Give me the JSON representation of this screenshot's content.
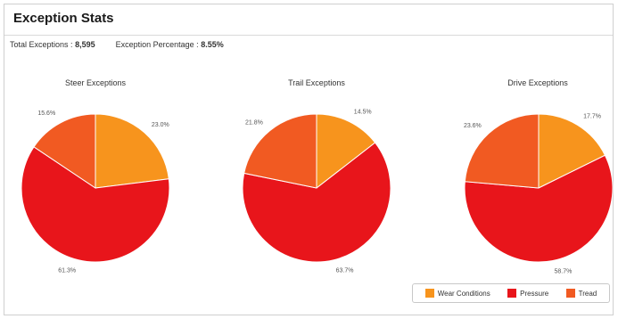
{
  "header": {
    "title": "Exception Stats"
  },
  "summary": {
    "total_label": "Total Exceptions :",
    "total_value": "8,595",
    "pct_label": "Exception Percentage :",
    "pct_value": "8.55%"
  },
  "colors": {
    "wear": "#f7941d",
    "pressure": "#e8151b",
    "tread": "#f15a22",
    "stroke": "#ffffff"
  },
  "chart_data": [
    {
      "type": "pie",
      "title": "Steer Exceptions",
      "series": [
        {
          "name": "Wear Conditions",
          "value": 23.0,
          "label": "23.0%"
        },
        {
          "name": "Pressure",
          "value": 61.3,
          "label": "61.3%"
        },
        {
          "name": "Tread",
          "value": 15.6,
          "label": "15.6%"
        }
      ]
    },
    {
      "type": "pie",
      "title": "Trail Exceptions",
      "series": [
        {
          "name": "Wear Conditions",
          "value": 14.5,
          "label": "14.5%"
        },
        {
          "name": "Pressure",
          "value": 63.7,
          "label": "63.7%"
        },
        {
          "name": "Tread",
          "value": 21.8,
          "label": "21.8%"
        }
      ]
    },
    {
      "type": "pie",
      "title": "Drive Exceptions",
      "series": [
        {
          "name": "Wear Conditions",
          "value": 17.7,
          "label": "17.7%"
        },
        {
          "name": "Pressure",
          "value": 58.7,
          "label": "58.7%"
        },
        {
          "name": "Tread",
          "value": 23.6,
          "label": "23.6%"
        }
      ]
    }
  ],
  "legend": {
    "items": [
      {
        "label": "Wear Conditions",
        "color": "#f7941d"
      },
      {
        "label": "Pressure",
        "color": "#e8151b"
      },
      {
        "label": "Tread",
        "color": "#f15a22"
      }
    ],
    "placement": "bottom-right"
  }
}
